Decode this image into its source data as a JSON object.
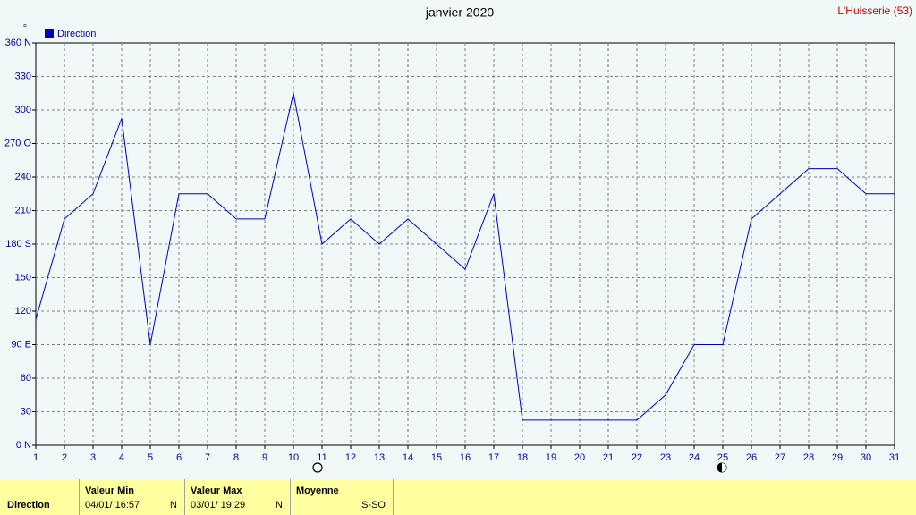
{
  "chart_data": {
    "type": "line",
    "title": "janvier 2020",
    "annotation": "L'Huisserie (53)",
    "y_unit": "°",
    "x": [
      1,
      2,
      3,
      4,
      5,
      6,
      7,
      8,
      9,
      10,
      11,
      12,
      13,
      14,
      15,
      16,
      17,
      18,
      19,
      20,
      21,
      22,
      23,
      24,
      25,
      26,
      27,
      28,
      29,
      30,
      31
    ],
    "series": [
      {
        "name": "Direction",
        "color": "#0000c0",
        "values": [
          112.5,
          202.5,
          225,
          292.5,
          90,
          225,
          225,
          202.5,
          202.5,
          315,
          180,
          202.5,
          180,
          202.5,
          180,
          157.5,
          225,
          22.5,
          22.5,
          22.5,
          22.5,
          22.5,
          45,
          90,
          90,
          202.5,
          225,
          247.5,
          247.5,
          225,
          225
        ]
      }
    ],
    "xlim": [
      1,
      31
    ],
    "xticks": [
      1,
      2,
      3,
      4,
      5,
      6,
      7,
      8,
      9,
      10,
      11,
      12,
      13,
      14,
      15,
      16,
      17,
      18,
      19,
      20,
      21,
      22,
      23,
      24,
      25,
      26,
      27,
      28,
      29,
      30,
      31
    ],
    "ylim": [
      0,
      360
    ],
    "yticks": [
      {
        "value": 0,
        "label": "0  N"
      },
      30,
      60,
      {
        "value": 90,
        "label": "90  E"
      },
      120,
      150,
      {
        "value": 180,
        "label": "180 S"
      },
      210,
      240,
      {
        "value": 270,
        "label": "270 O"
      },
      300,
      330,
      {
        "value": 360,
        "label": "360 N"
      }
    ],
    "grid": true,
    "legend": "top-left"
  },
  "summary": {
    "row_label": "Direction",
    "columns": [
      {
        "header": "Valeur Min",
        "value": "04/01/  16:57",
        "direction": "N"
      },
      {
        "header": "Valeur Max",
        "value": "03/01/  19:29",
        "direction": "N"
      },
      {
        "header": "Moyenne",
        "value": "S-SO"
      }
    ]
  }
}
